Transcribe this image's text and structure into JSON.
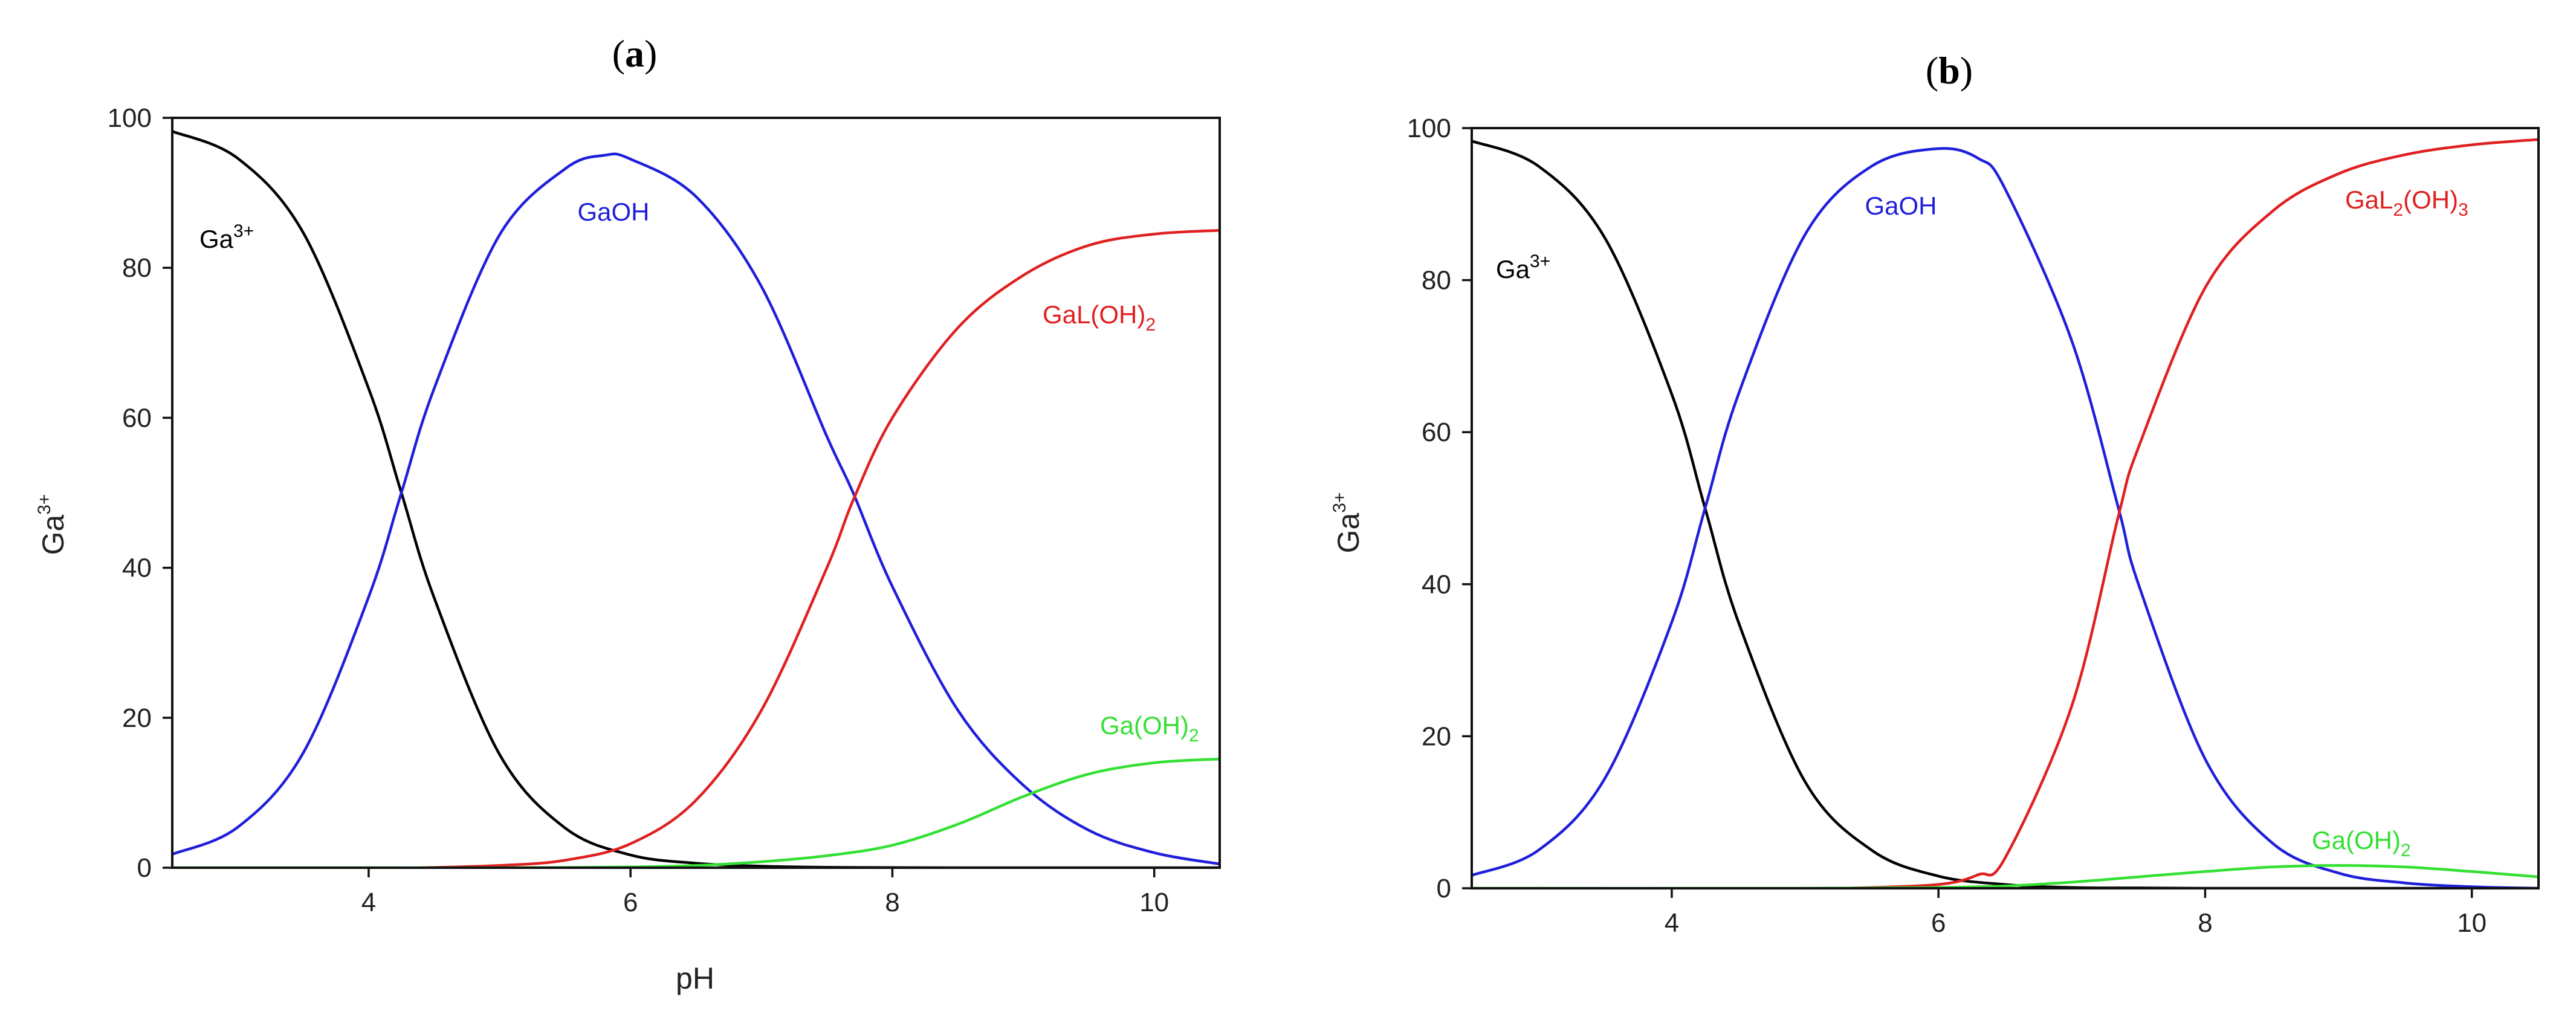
{
  "chart_data": [
    {
      "type": "line",
      "panel": "(a)",
      "panel_prefix": "(",
      "panel_letter": "a",
      "panel_suffix": ")",
      "xlabel": "pH",
      "ylabel": "Ga",
      "ylabel_sup": "3+",
      "xlim": [
        2.5,
        10.5
      ],
      "ylim": [
        0,
        100
      ],
      "xticks": [
        4,
        6,
        8,
        10
      ],
      "yticks": [
        0,
        20,
        40,
        60,
        80,
        100
      ],
      "grid": false,
      "series": [
        {
          "name": "Ga3+",
          "label_main": "Ga",
          "label_sub": "",
          "label_sup": "3+",
          "color": "#000000",
          "x": [
            2.5,
            3.0,
            3.5,
            4.0,
            4.25,
            4.5,
            5.0,
            5.5,
            6.0,
            6.5,
            7.0,
            7.5,
            8.0,
            8.5,
            9.0,
            9.5,
            10.0,
            10.5
          ],
          "y": [
            98.2,
            94.6,
            84.7,
            63.9,
            50.0,
            36.0,
            15.1,
            5.3,
            1.7,
            0.6,
            0.2,
            0.06,
            0.02,
            0.0,
            0.0,
            0.0,
            0.0,
            0.0
          ]
        },
        {
          "name": "GaOH",
          "label_main": "GaOH",
          "label_sub": "",
          "label_sup": "",
          "color": "#1f1fdb",
          "x": [
            2.5,
            3.0,
            3.5,
            4.0,
            4.25,
            4.5,
            5.0,
            5.5,
            5.8,
            6.0,
            6.5,
            7.0,
            7.5,
            7.7,
            8.0,
            8.5,
            9.0,
            9.5,
            10.0,
            10.5
          ],
          "y": [
            1.8,
            5.4,
            15.3,
            36.1,
            50.0,
            63.9,
            84.4,
            93.2,
            95.0,
            94.5,
            89.5,
            77.5,
            57.5,
            50.0,
            37.5,
            21.0,
            11.0,
            5.0,
            2.0,
            0.5
          ]
        },
        {
          "name": "GaL(OH)2",
          "label_main": "GaL(OH)",
          "label_sub": "2",
          "label_sup": "",
          "color": "#e02020",
          "x": [
            4.4,
            5.0,
            5.5,
            6.0,
            6.5,
            7.0,
            7.5,
            7.7,
            8.0,
            8.5,
            9.0,
            9.5,
            10.0,
            10.5
          ],
          "y": [
            0.0,
            0.3,
            1.0,
            3.2,
            9.0,
            21.0,
            40.0,
            49.0,
            60.0,
            72.0,
            79.0,
            83.0,
            84.5,
            85.0
          ]
        },
        {
          "name": "Ga(OH)2",
          "label_main": "Ga(OH)",
          "label_sub": "2",
          "label_sup": "",
          "color": "#33e033",
          "x": [
            2.5,
            4.0,
            5.0,
            6.0,
            6.5,
            7.0,
            7.5,
            8.0,
            8.5,
            9.0,
            9.5,
            10.0,
            10.5
          ],
          "y": [
            0.0,
            0.0,
            0.0,
            0.1,
            0.3,
            0.8,
            1.6,
            3.0,
            5.8,
            9.5,
            12.5,
            14.0,
            14.5
          ]
        }
      ]
    },
    {
      "type": "line",
      "panel": "(b)",
      "panel_prefix": "(",
      "panel_letter": "b",
      "panel_suffix": ")",
      "xlabel": "",
      "ylabel": "Ga",
      "ylabel_sup": "3+",
      "xlim": [
        2.5,
        10.5
      ],
      "ylim": [
        0,
        100
      ],
      "xticks": [
        4,
        6,
        8,
        10
      ],
      "yticks": [
        0,
        20,
        40,
        60,
        80,
        100
      ],
      "grid": false,
      "series": [
        {
          "name": "Ga3+",
          "label_main": "Ga",
          "label_sub": "",
          "label_sup": "3+",
          "color": "#000000",
          "x": [
            2.5,
            3.0,
            3.5,
            4.0,
            4.25,
            4.5,
            5.0,
            5.5,
            6.0,
            6.5,
            7.0,
            7.5,
            8.0,
            8.5,
            9.0,
            9.5,
            10.0,
            10.5
          ],
          "y": [
            98.3,
            95.0,
            85.5,
            65.0,
            50.0,
            35.0,
            14.0,
            5.0,
            1.6,
            0.5,
            0.1,
            0.05,
            0.0,
            0.0,
            0.0,
            0.0,
            0.0,
            0.0
          ]
        },
        {
          "name": "GaOH",
          "label_main": "GaOH",
          "label_sub": "",
          "label_sup": "",
          "color": "#1f1fdb",
          "x": [
            2.5,
            3.0,
            3.5,
            4.0,
            4.25,
            4.5,
            5.0,
            5.5,
            6.0,
            6.3,
            6.5,
            7.0,
            7.35,
            7.5,
            8.0,
            8.5,
            9.0,
            9.5,
            10.0,
            10.5
          ],
          "y": [
            1.7,
            5.0,
            14.5,
            35.0,
            50.0,
            65.0,
            86.0,
            95.0,
            97.3,
            96.0,
            92.0,
            72.0,
            50.0,
            40.0,
            17.0,
            6.0,
            2.0,
            0.7,
            0.2,
            0.0
          ]
        },
        {
          "name": "GaL2(OH)3",
          "label_main": "GaL",
          "label_sub": "2",
          "label_mid": "(OH)",
          "label_sub2": "3",
          "label_sup": "",
          "color": "#e02020",
          "x": [
            5.3,
            6.0,
            6.3,
            6.5,
            7.0,
            7.35,
            7.5,
            8.0,
            8.5,
            9.0,
            9.5,
            10.0,
            10.5
          ],
          "y": [
            0.0,
            0.5,
            1.8,
            4.0,
            24.0,
            49.0,
            58.0,
            79.0,
            89.0,
            94.0,
            96.5,
            97.8,
            98.5
          ]
        },
        {
          "name": "Ga(OH)2",
          "label_main": "Ga(OH)",
          "label_sub": "2",
          "label_sup": "",
          "color": "#33e033",
          "x": [
            2.5,
            5.0,
            6.0,
            6.5,
            7.0,
            7.5,
            8.0,
            8.5,
            9.0,
            9.5,
            10.0,
            10.5
          ],
          "y": [
            0.0,
            0.0,
            0.1,
            0.3,
            0.8,
            1.5,
            2.2,
            2.8,
            3.0,
            2.8,
            2.2,
            1.5
          ]
        }
      ]
    }
  ]
}
